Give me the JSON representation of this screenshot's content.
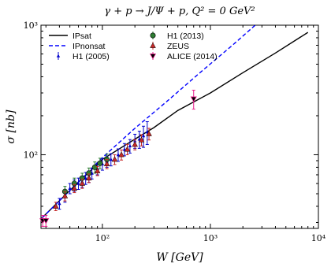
{
  "chart_data": {
    "type": "scatter",
    "title": "γ + p → J/Ψ + p, Q² = 0 GeV²",
    "xlabel": "W [GeV]",
    "ylabel": "σ [nb]",
    "xscale": "log",
    "yscale": "log",
    "xlim": [
      27,
      10000
    ],
    "ylim": [
      27,
      1000
    ],
    "x_ticks": [
      "10²",
      "10³",
      "10⁴"
    ],
    "y_ticks": [
      "10²",
      "10³"
    ],
    "legend_placement": "top-left",
    "series": [
      {
        "name": "IPsat",
        "kind": "line",
        "style": "solid",
        "color": "#000000",
        "x": [
          25,
          50,
          100,
          200,
          300,
          500,
          1000,
          2000,
          4000,
          8000
        ],
        "y": [
          30,
          53,
          92,
          132,
          162,
          220,
          300,
          430,
          610,
          880
        ]
      },
      {
        "name": "IPnonsat",
        "kind": "line",
        "style": "dashed",
        "color": "#0000ff",
        "x": [
          25,
          50,
          100,
          200,
          400,
          800,
          1600,
          2600
        ],
        "y": [
          30,
          53,
          95,
          160,
          260,
          430,
          700,
          1000
        ]
      },
      {
        "name": "H1 (2005)",
        "kind": "points",
        "marker": "triangle-up-small",
        "color": "#0000cc",
        "x": [
          40,
          45,
          50,
          55,
          60,
          65,
          70,
          75,
          80,
          90,
          100,
          110,
          120,
          140,
          160,
          180,
          200,
          220,
          240,
          260
        ],
        "y": [
          42,
          48,
          55,
          58,
          60,
          62,
          66,
          68,
          72,
          78,
          85,
          89,
          92,
          100,
          110,
          117,
          128,
          132,
          140,
          150
        ],
        "err": [
          4,
          5,
          5,
          6,
          6,
          6,
          7,
          7,
          7,
          8,
          9,
          9,
          10,
          11,
          12,
          14,
          16,
          20,
          26,
          30
        ]
      },
      {
        "name": "H1 (2013)",
        "kind": "points",
        "marker": "circle",
        "color": "#2e7d32",
        "x": [
          45,
          55,
          65,
          75,
          85,
          95,
          110
        ],
        "y": [
          52,
          60,
          66,
          72,
          80,
          86,
          92
        ],
        "err": [
          5,
          6,
          6,
          7,
          8,
          8,
          9
        ]
      },
      {
        "name": "ZEUS",
        "kind": "points",
        "marker": "triangle-up",
        "color": "#c62828",
        "x": [
          37,
          45,
          55,
          65,
          75,
          90,
          110,
          130,
          150,
          170,
          200,
          230,
          270
        ],
        "y": [
          40,
          48,
          55,
          60,
          66,
          75,
          85,
          92,
          100,
          110,
          120,
          130,
          145
        ],
        "err": [
          3,
          4,
          4,
          5,
          5,
          6,
          7,
          8,
          9,
          10,
          11,
          13,
          15
        ]
      },
      {
        "name": "ALICE (2014)",
        "kind": "points",
        "marker": "triangle-down",
        "color": "#e91e8c",
        "x": [
          28,
          30,
          700
        ],
        "y": [
          31,
          31,
          270
        ],
        "err": [
          3,
          3,
          45
        ]
      }
    ]
  }
}
